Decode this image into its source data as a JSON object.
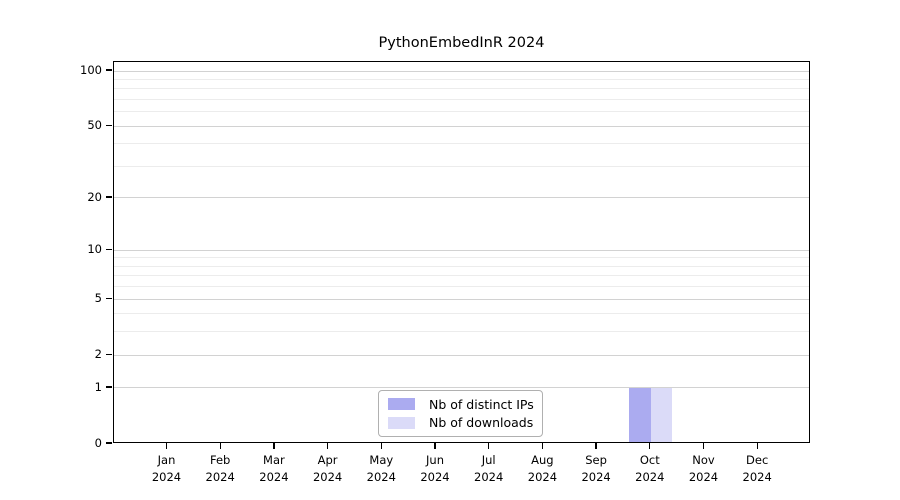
{
  "chart_data": {
    "type": "bar",
    "title": "PythonEmbedInR 2024",
    "categories": [
      "Jan",
      "Feb",
      "Mar",
      "Apr",
      "May",
      "Jun",
      "Jul",
      "Aug",
      "Sep",
      "Oct",
      "Nov",
      "Dec"
    ],
    "year_label": "2024",
    "series": [
      {
        "name": "Nb of distinct IPs",
        "color": "#ababf0",
        "values": [
          0,
          0,
          0,
          0,
          0,
          0,
          0,
          0,
          0,
          1,
          0,
          0
        ]
      },
      {
        "name": "Nb of downloads",
        "color": "#dbdbf8",
        "values": [
          0,
          0,
          0,
          0,
          0,
          0,
          0,
          0,
          0,
          1,
          0,
          0
        ]
      }
    ],
    "xlabel": "",
    "ylabel": "",
    "y_axis": {
      "scale": "log1p",
      "major_ticks": [
        0,
        1,
        2,
        5,
        10,
        20,
        50,
        100
      ],
      "minor_gridlines": [
        3,
        4,
        6,
        7,
        8,
        9,
        30,
        40,
        60,
        70,
        80,
        90
      ],
      "ylim": [
        0,
        112
      ]
    },
    "grid": "horizontal",
    "legend": {
      "position": "bottom-center",
      "entries": [
        "Nb of distinct IPs",
        "Nb of downloads"
      ]
    },
    "colors": {
      "major_gridline": "#d2d2d2",
      "minor_gridline": "#ececec",
      "frame": "#000000",
      "background": "#ffffff"
    }
  }
}
